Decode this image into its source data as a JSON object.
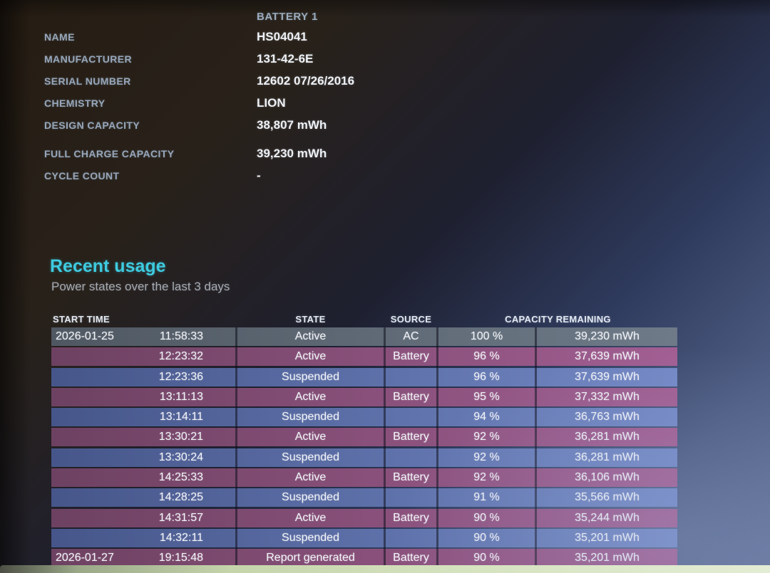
{
  "colors": {
    "section_title_accent": "#3ecbe0",
    "label_text": "#97a7ba",
    "value_text": "#edf1f6",
    "row_ac_gray": "#5d6874",
    "row_battery_purple": "#8f5480",
    "row_suspended_blue": "#5b6fae"
  },
  "battery_info": {
    "column_header": "BATTERY 1",
    "rows": [
      {
        "label": "NAME",
        "value": "HS04041"
      },
      {
        "label": "MANUFACTURER",
        "value": "131-42-6E"
      },
      {
        "label": "SERIAL NUMBER",
        "value": "12602 07/26/2016"
      },
      {
        "label": "CHEMISTRY",
        "value": "LION"
      },
      {
        "label": "DESIGN CAPACITY",
        "value": "38,807 mWh"
      },
      {
        "label": "FULL CHARGE CAPACITY",
        "value": "39,230 mWh",
        "gap_above": true
      },
      {
        "label": "CYCLE COUNT",
        "value": "-"
      }
    ]
  },
  "recent_usage": {
    "title": "Recent usage",
    "subtitle": "Power states over the last 3 days",
    "table": {
      "headers": {
        "start_time": "START TIME",
        "state": "STATE",
        "source": "SOURCE",
        "capacity_remaining": "CAPACITY REMAINING"
      },
      "rows": [
        {
          "date": "2026-01-25",
          "time": "11:58:33",
          "state": "Active",
          "source": "AC",
          "percent": "100 %",
          "mwh": "39,230 mWh",
          "tone": "gray"
        },
        {
          "date": "",
          "time": "12:23:32",
          "state": "Active",
          "source": "Battery",
          "percent": "96 %",
          "mwh": "37,639 mWh",
          "tone": "purple"
        },
        {
          "date": "",
          "time": "12:23:36",
          "state": "Suspended",
          "source": "",
          "percent": "96 %",
          "mwh": "37,639 mWh",
          "tone": "blue"
        },
        {
          "date": "",
          "time": "13:11:13",
          "state": "Active",
          "source": "Battery",
          "percent": "95 %",
          "mwh": "37,332 mWh",
          "tone": "purple"
        },
        {
          "date": "",
          "time": "13:14:11",
          "state": "Suspended",
          "source": "",
          "percent": "94 %",
          "mwh": "36,763 mWh",
          "tone": "blue"
        },
        {
          "date": "",
          "time": "13:30:21",
          "state": "Active",
          "source": "Battery",
          "percent": "92 %",
          "mwh": "36,281 mWh",
          "tone": "purple"
        },
        {
          "date": "",
          "time": "13:30:24",
          "state": "Suspended",
          "source": "",
          "percent": "92 %",
          "mwh": "36,281 mWh",
          "tone": "blue"
        },
        {
          "date": "",
          "time": "14:25:33",
          "state": "Active",
          "source": "Battery",
          "percent": "92 %",
          "mwh": "36,106 mWh",
          "tone": "purple"
        },
        {
          "date": "",
          "time": "14:28:25",
          "state": "Suspended",
          "source": "",
          "percent": "91 %",
          "mwh": "35,566 mWh",
          "tone": "blue"
        },
        {
          "date": "",
          "time": "14:31:57",
          "state": "Active",
          "source": "Battery",
          "percent": "90 %",
          "mwh": "35,244 mWh",
          "tone": "purple"
        },
        {
          "date": "",
          "time": "14:32:11",
          "state": "Suspended",
          "source": "",
          "percent": "90 %",
          "mwh": "35,201 mWh",
          "tone": "blue"
        },
        {
          "date": "2026-01-27",
          "time": "19:15:48",
          "state": "Report generated",
          "source": "Battery",
          "percent": "90 %",
          "mwh": "35,201 mWh",
          "tone": "purple"
        }
      ]
    }
  }
}
